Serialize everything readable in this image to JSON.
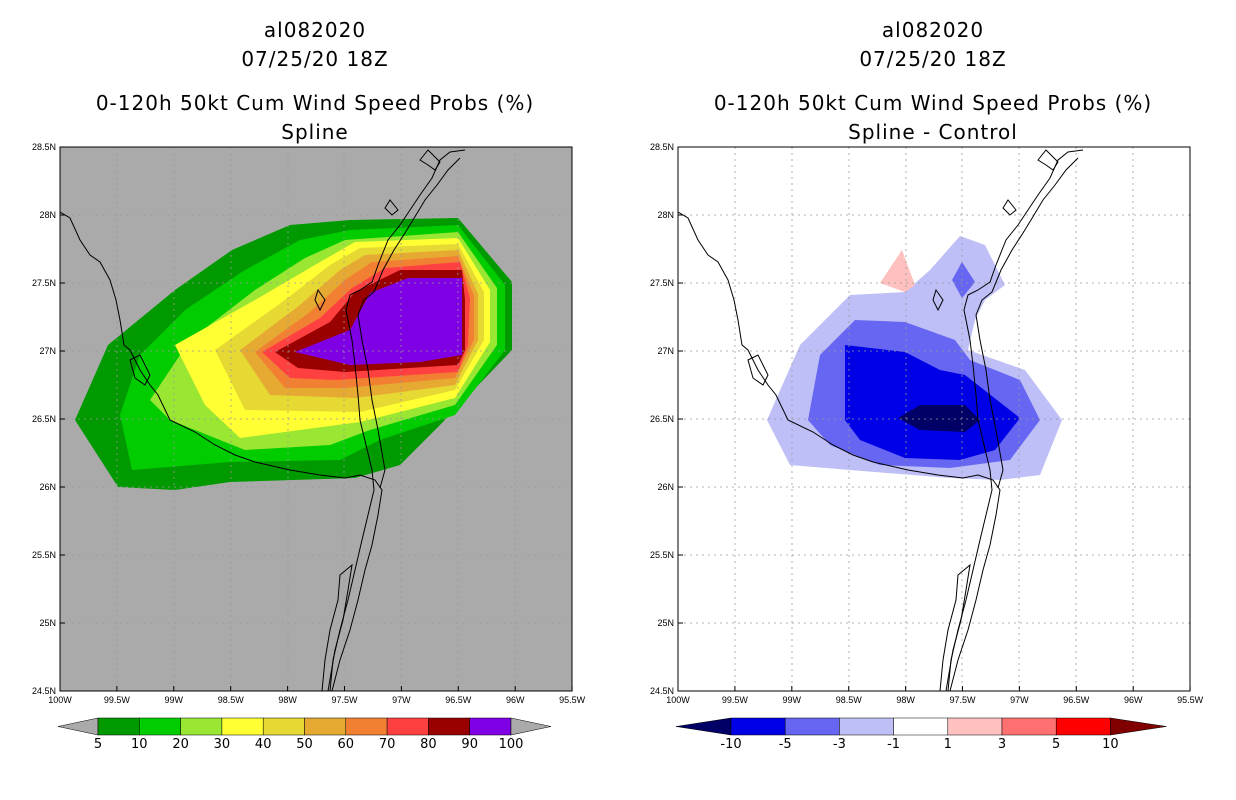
{
  "left_panel": {
    "storm": "al082020",
    "datetime": "07/25/20 18Z",
    "product": "0-120h 50kt Cum Wind Speed Probs (%)",
    "subtitle": "Spline",
    "colorbar": {
      "labels": [
        "5",
        "10",
        "20",
        "30",
        "40",
        "50",
        "60",
        "70",
        "80",
        "90",
        "100"
      ],
      "colors": [
        "#009900",
        "#00cc00",
        "#99e633",
        "#ffff33",
        "#e6d933",
        "#e6aa33",
        "#f28033",
        "#ff4040",
        "#990000",
        "#8000e6"
      ]
    }
  },
  "right_panel": {
    "storm": "al082020",
    "datetime": "07/25/20 18Z",
    "product": "0-120h 50kt Cum Wind Speed Probs (%)",
    "subtitle": "Spline - Control",
    "colorbar": {
      "labels": [
        "-10",
        "-5",
        "-3",
        "-1",
        "1",
        "3",
        "5",
        "10"
      ],
      "colors": [
        "#000066",
        "#0000e6",
        "#6666f2",
        "#bfbff7",
        "#ffffff",
        "#ffc0c0",
        "#ff7070",
        "#ff0000",
        "#800000"
      ]
    }
  },
  "axes": {
    "lon_labels": [
      "100W",
      "99.5W",
      "99W",
      "98.5W",
      "98W",
      "97.5W",
      "97W",
      "96.5W",
      "96W",
      "95.5W"
    ],
    "lat_labels": [
      "28.5N",
      "28N",
      "27.5N",
      "27N",
      "26.5N",
      "26N",
      "25.5N",
      "25N",
      "24.5N"
    ]
  },
  "colors": {
    "background_missing": "#aaaaaa",
    "grid": "#999999"
  }
}
